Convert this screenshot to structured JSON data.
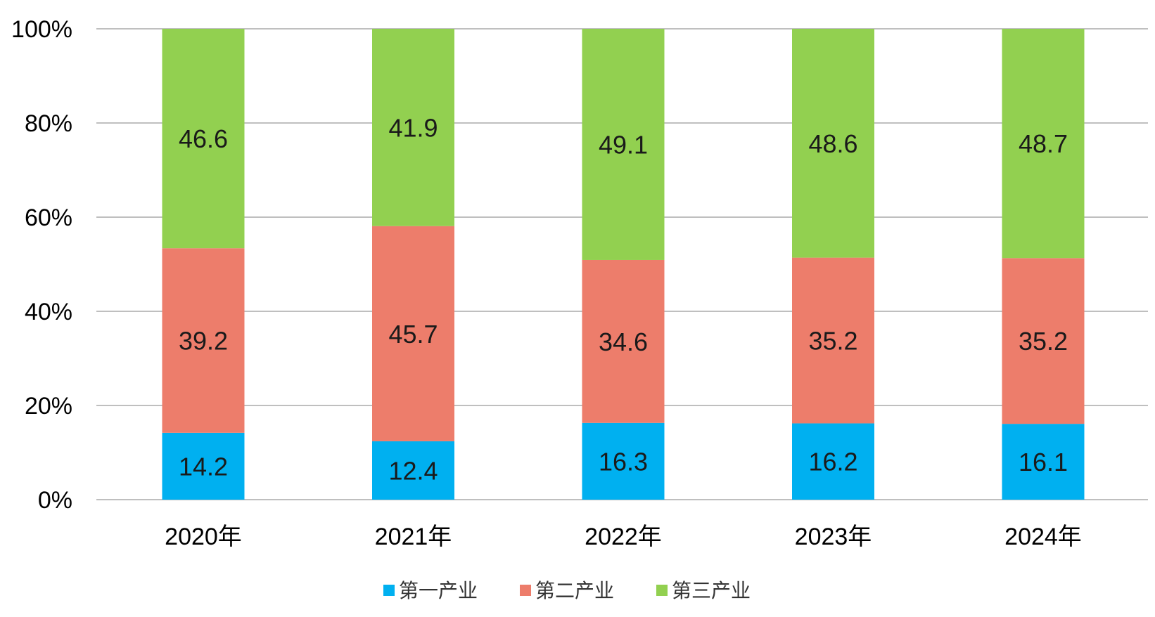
{
  "chart_data": {
    "type": "bar",
    "stacked": true,
    "percent_stacked": true,
    "categories": [
      "2020年",
      "2021年",
      "2022年",
      "2023年",
      "2024年"
    ],
    "series": [
      {
        "name": "第一产业",
        "color": "#00b0f0",
        "values": [
          14.2,
          12.4,
          16.3,
          16.2,
          16.1
        ]
      },
      {
        "name": "第二产业",
        "color": "#ed7d6b",
        "values": [
          39.2,
          45.7,
          34.6,
          35.2,
          35.2
        ]
      },
      {
        "name": "第三产业",
        "color": "#92d050",
        "values": [
          46.6,
          41.9,
          49.1,
          48.6,
          48.7
        ]
      }
    ],
    "data_labels": [
      [
        "14.2",
        "12.4",
        "16.3",
        "16.2",
        "16.1"
      ],
      [
        "39.2",
        "45.7",
        "34.6",
        "35.2",
        "35.2"
      ],
      [
        "46.6",
        "41.9",
        "49.1",
        "48.6",
        "48.7"
      ]
    ],
    "y_ticks": [
      "0%",
      "20%",
      "40%",
      "60%",
      "80%",
      "100%"
    ],
    "ylim": [
      0,
      100
    ],
    "grid": true,
    "legend_position": "bottom",
    "title": "",
    "xlabel": "",
    "ylabel": "",
    "gridline_color": "#bfbfbf"
  }
}
